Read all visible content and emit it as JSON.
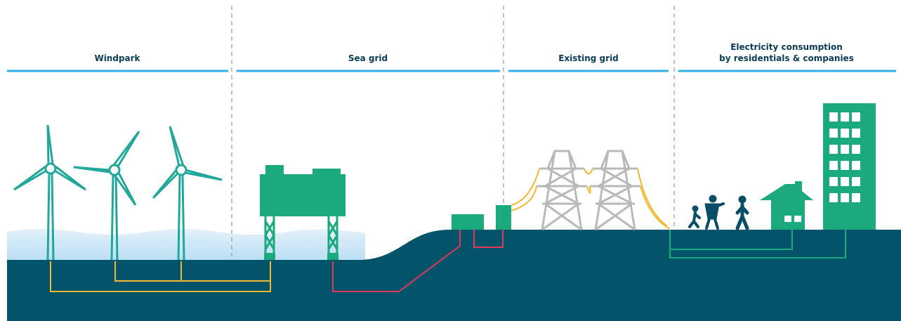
{
  "sections": [
    {
      "lines": [
        "Windpark"
      ]
    },
    {
      "lines": [
        "Sea grid"
      ]
    },
    {
      "lines": [
        "Existing grid"
      ]
    },
    {
      "lines": [
        "Electricity consumption",
        "by residentials & companies"
      ]
    }
  ]
}
